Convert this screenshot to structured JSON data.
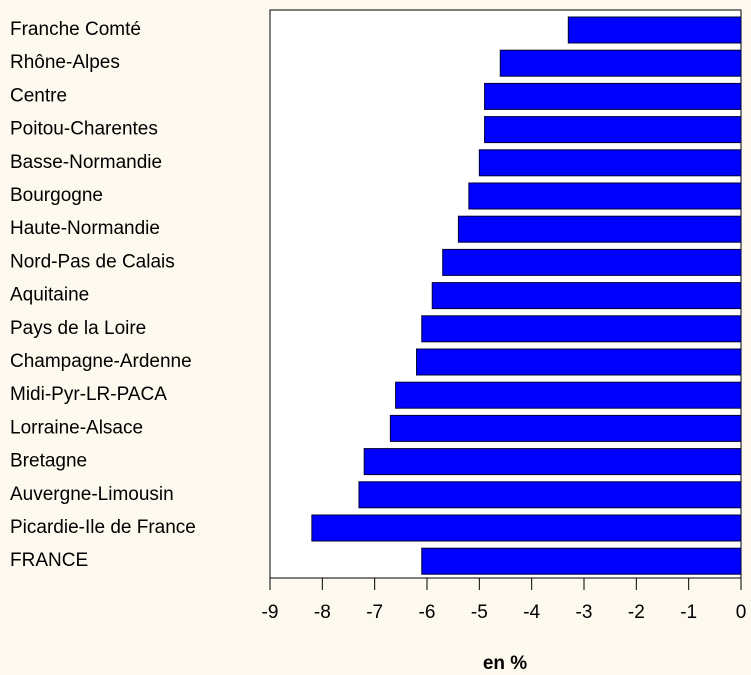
{
  "chart_data": {
    "type": "hbar",
    "categories": [
      "Franche Comté",
      "Rhône-Alpes",
      "Centre",
      "Poitou-Charentes",
      "Basse-Normandie",
      "Bourgogne",
      "Haute-Normandie",
      "Nord-Pas de Calais",
      "Aquitaine",
      "Pays de la Loire",
      "Champagne-Ardenne",
      "Midi-Pyr-LR-PACA",
      "Lorraine-Alsace",
      "Bretagne",
      "Auvergne-Limousin",
      "Picardie-Ile de France",
      "FRANCE"
    ],
    "values": [
      -3.3,
      -4.6,
      -4.9,
      -4.9,
      -5.0,
      -5.2,
      -5.4,
      -5.7,
      -5.9,
      -6.1,
      -6.2,
      -6.6,
      -6.7,
      -7.2,
      -7.3,
      -8.2,
      -6.1
    ],
    "color": "#0000ff",
    "xlabel": "en %",
    "xlim": [
      -9,
      0
    ],
    "xticks": [
      -9,
      -8,
      -7,
      -6,
      -5,
      -4,
      -3,
      -2,
      -1,
      0
    ]
  }
}
